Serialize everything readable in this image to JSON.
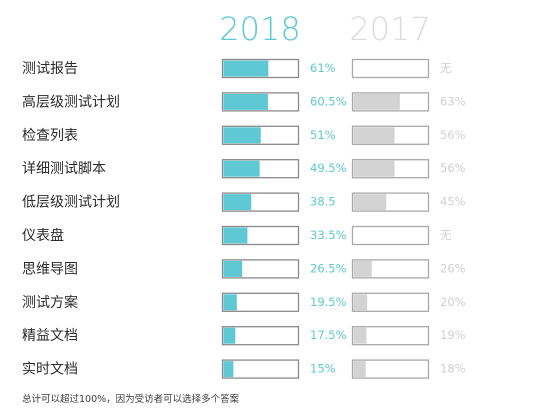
{
  "chart_data": {
    "type": "bar",
    "orientation": "horizontal",
    "xlim": [
      0,
      100
    ],
    "value_unit": "%",
    "categories": [
      "测试报告",
      "高层级测试计划",
      "检查列表",
      "详细测试脚本",
      "低层级测试计划",
      "仪表盘",
      "思维导图",
      "测试方案",
      "精益文档",
      "实时文档"
    ],
    "series": [
      {
        "name": "2018",
        "values": [
          61,
          60.5,
          51,
          49.5,
          38.5,
          33.5,
          26.5,
          19.5,
          17.5,
          15
        ],
        "labels": [
          "61%",
          "60.5%",
          "51%",
          "49.5%",
          "38.5",
          "33.5%",
          "26.5%",
          "19.5%",
          "17.5%",
          "15%"
        ],
        "color": "#5ec8d5",
        "label_color": "#5ec8d5"
      },
      {
        "name": "2017",
        "values": [
          null,
          63,
          56,
          56,
          45,
          null,
          26,
          20,
          19,
          18
        ],
        "labels": [
          "无",
          "63%",
          "56%",
          "56%",
          "45%",
          "无",
          "26%",
          "20%",
          "19%",
          "18%"
        ],
        "color": "#d3d3d3",
        "label_color": "#d0d0d0"
      }
    ],
    "footnote": "总计可以超过100%，因为受访者可以选择多个答案"
  }
}
